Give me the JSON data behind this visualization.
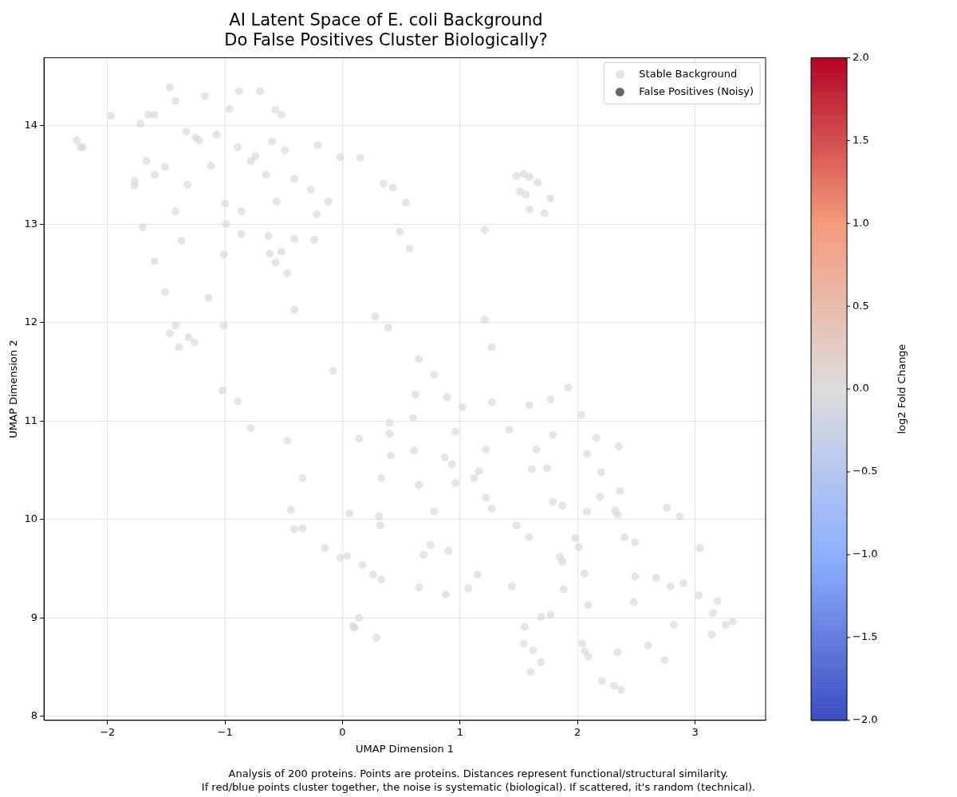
{
  "chart_data": {
    "type": "scatter",
    "title": "AI Latent Space of E. coli Background\nDo False Positives Cluster Biologically?",
    "xlabel": "UMAP Dimension 1",
    "ylabel": "UMAP Dimension 2",
    "clabel": "log2 Fold Change",
    "clim": [
      -2,
      2
    ],
    "cticks": [
      {
        "value": -2,
        "label": "−2.0"
      },
      -1.5,
      {
        "value": -1,
        "label": "−1.0"
      },
      -0.5,
      {
        "value": 0,
        "label": "0.0"
      },
      0.5,
      {
        "value": 1,
        "label": "1.0"
      },
      1.5,
      {
        "value": 2,
        "label": "2.0"
      }
    ],
    "xlim": [
      -2.54,
      3.6
    ],
    "ylim": [
      7.96,
      14.69
    ],
    "xticks": [
      -2,
      -1,
      0,
      1,
      2,
      3
    ],
    "yticks": [
      8,
      9,
      10,
      11,
      12,
      13,
      14
    ],
    "grid": true,
    "legend": "top right",
    "marker": "circle",
    "annotations": [
      "Analysis of 200 proteins. Points are proteins. Distances represent functional/structural similarity.",
      "If red/blue points cluster together, the noise is systematic (biological). If scattered, it's random (technical)."
    ],
    "series": [
      {
        "name": "Stable Background",
        "color": "#d3d3d3",
        "x": [
          -1.47,
          -1.42,
          -1.17,
          -0.88,
          -0.7,
          -0.96,
          -1.65,
          -1.6,
          -1.97,
          -1.72,
          -0.57,
          -0.52,
          -2.26,
          -2.23,
          -2.21,
          -1.33,
          -1.25,
          -1.22,
          -1.07,
          -0.89,
          -0.74,
          -0.6,
          -0.49,
          -0.21,
          -0.78,
          -1.67,
          -1.51,
          -1.12,
          -1.77,
          -1.77,
          -1.6,
          -1.32,
          -0.65,
          -0.41,
          -0.27,
          -0.02,
          0.15,
          0.35,
          0.43,
          0.54,
          -0.12,
          -0.22,
          -0.56,
          -1.0,
          -0.86,
          -1.42,
          -0.99,
          -1.7,
          -0.86,
          -0.63,
          -0.41,
          -0.24,
          -1.37,
          -1.01,
          -0.62,
          -0.52,
          -0.57,
          -0.47,
          -1.6,
          0.49,
          0.57,
          -1.51,
          -1.14,
          -0.41,
          0.28,
          0.39,
          -1.42,
          -1.01,
          -1.47,
          -1.31,
          -1.26,
          -1.39,
          -0.08,
          -1.02,
          -0.89,
          -0.78,
          -0.47,
          0.14,
          -0.34,
          -0.44,
          -0.41,
          -0.34,
          0.06,
          -0.15,
          -0.02,
          0.04,
          0.17,
          0.26,
          0.33,
          0.14,
          0.09,
          0.1,
          0.29,
          0.33,
          0.31,
          0.32,
          0.4,
          0.4,
          0.41,
          1.48,
          1.54,
          1.59,
          1.66,
          1.51,
          1.56,
          1.77,
          1.59,
          1.72,
          1.21,
          1.21,
          1.27,
          0.65,
          0.78,
          0.62,
          0.89,
          1.02,
          1.27,
          0.6,
          0.96,
          1.59,
          1.77,
          1.92,
          2.03,
          1.42,
          1.79,
          2.16,
          2.35,
          0.61,
          0.87,
          0.93,
          1.22,
          1.65,
          2.08,
          1.16,
          1.12,
          1.61,
          1.74,
          2.2,
          0.65,
          0.96,
          1.22,
          1.27,
          1.79,
          1.87,
          2.19,
          2.36,
          0.78,
          2.08,
          2.32,
          2.34,
          2.76,
          2.87,
          1.48,
          1.59,
          1.98,
          2.4,
          2.49,
          2.01,
          3.04,
          0.75,
          0.69,
          0.9,
          1.85,
          1.87,
          2.06,
          1.15,
          2.49,
          2.67,
          2.9,
          2.79,
          1.44,
          0.65,
          1.07,
          0.88,
          1.88,
          3.03,
          3.19,
          2.48,
          2.09,
          1.69,
          1.77,
          1.55,
          3.15,
          2.82,
          3.26,
          3.32,
          3.14,
          1.54,
          2.04,
          1.62,
          2.06,
          2.09,
          2.34,
          2.6,
          1.69,
          2.74,
          1.6,
          2.21,
          2.31,
          2.37
        ],
        "values": [
          14.39,
          14.25,
          14.3,
          14.35,
          14.35,
          14.17,
          14.11,
          14.11,
          14.1,
          14.02,
          14.16,
          14.11,
          13.85,
          13.78,
          13.78,
          13.94,
          13.88,
          13.85,
          13.91,
          13.78,
          13.69,
          13.84,
          13.75,
          13.8,
          13.64,
          13.64,
          13.58,
          13.59,
          13.44,
          13.39,
          13.5,
          13.4,
          13.5,
          13.46,
          13.35,
          13.68,
          13.67,
          13.41,
          13.37,
          13.22,
          13.23,
          13.1,
          13.23,
          13.21,
          13.13,
          13.13,
          13.0,
          12.97,
          12.9,
          12.88,
          12.85,
          12.84,
          12.83,
          12.69,
          12.7,
          12.72,
          12.61,
          12.5,
          12.62,
          12.92,
          12.75,
          12.31,
          12.25,
          12.13,
          12.06,
          11.95,
          11.97,
          11.97,
          11.89,
          11.85,
          11.8,
          11.75,
          11.51,
          11.31,
          11.2,
          10.93,
          10.8,
          10.82,
          10.42,
          10.1,
          9.9,
          9.91,
          10.06,
          9.71,
          9.61,
          9.63,
          9.54,
          9.44,
          9.39,
          9.0,
          8.92,
          8.9,
          8.8,
          10.42,
          10.03,
          9.94,
          10.98,
          10.87,
          10.65,
          13.49,
          13.51,
          13.48,
          13.42,
          13.33,
          13.3,
          13.26,
          13.15,
          13.11,
          12.94,
          12.03,
          11.75,
          11.63,
          11.47,
          11.27,
          11.24,
          11.14,
          11.19,
          11.03,
          10.89,
          11.16,
          11.22,
          11.34,
          11.06,
          10.91,
          10.86,
          10.83,
          10.74,
          10.7,
          10.63,
          10.56,
          10.71,
          10.71,
          10.67,
          10.49,
          10.42,
          10.51,
          10.52,
          10.48,
          10.35,
          10.37,
          10.22,
          10.11,
          10.18,
          10.14,
          10.23,
          10.29,
          10.08,
          10.08,
          10.09,
          10.05,
          10.12,
          10.03,
          9.94,
          9.82,
          9.81,
          9.82,
          9.77,
          9.72,
          9.71,
          9.74,
          9.64,
          9.68,
          9.62,
          9.57,
          9.45,
          9.44,
          9.42,
          9.41,
          9.35,
          9.32,
          9.32,
          9.31,
          9.3,
          9.24,
          9.29,
          9.23,
          9.17,
          9.16,
          9.13,
          9.01,
          9.03,
          8.91,
          9.05,
          8.93,
          8.93,
          8.96,
          8.83,
          8.74,
          8.74,
          8.67,
          8.66,
          8.61,
          8.65,
          8.72,
          8.55,
          8.57,
          8.45,
          8.36,
          8.31,
          8.27
        ]
      },
      {
        "name": "False Positives (Noisy)",
        "color": "#000000"
      }
    ]
  }
}
